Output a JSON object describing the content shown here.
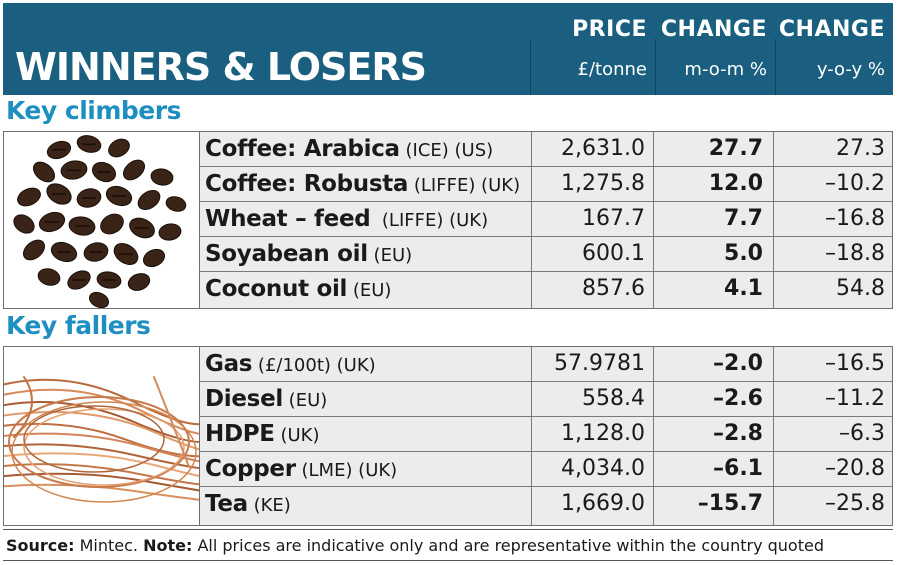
{
  "title": "WINNERS & LOSERS",
  "columns": [
    {
      "heading": "PRICE",
      "unit": "£/tonne"
    },
    {
      "heading": "CHANGE",
      "unit": "m-o-m %"
    },
    {
      "heading": "CHANGE",
      "unit": "y-o-y %"
    }
  ],
  "sections": [
    {
      "heading": "Key climbers",
      "rows": [
        {
          "name": "Coffee: Arabica",
          "qualifier": " (ICE) (US)",
          "price": "2,631.0",
          "mom": "27.7",
          "yoy": "27.3"
        },
        {
          "name": "Coffee: Robusta",
          "qualifier": " (LIFFE) (UK)",
          "price": "1,275.8",
          "mom": "12.0",
          "yoy": "–10.2"
        },
        {
          "name": "Wheat – feed",
          "qualifier": "  (LIFFE) (UK)",
          "price": "167.7",
          "mom": "7.7",
          "yoy": "–16.8"
        },
        {
          "name": "Soyabean oil",
          "qualifier": " (EU)",
          "price": "600.1",
          "mom": "5.0",
          "yoy": "–18.8"
        },
        {
          "name": "Coconut oil",
          "qualifier": " (EU)",
          "price": "857.6",
          "mom": "4.1",
          "yoy": "54.8"
        }
      ]
    },
    {
      "heading": "Key fallers",
      "rows": [
        {
          "name": "Gas",
          "qualifier": " (£/100t) (UK)",
          "price": "57.9781",
          "mom": "–2.0",
          "yoy": "–16.5"
        },
        {
          "name": "Diesel",
          "qualifier": " (EU)",
          "price": "558.4",
          "mom": "–2.6",
          "yoy": "–11.2"
        },
        {
          "name": "HDPE",
          "qualifier": " (UK)",
          "price": "1,128.0",
          "mom": "–2.8",
          "yoy": "–6.3"
        },
        {
          "name": "Copper",
          "qualifier": " (LME) (UK)",
          "price": "4,034.0",
          "mom": "–6.1",
          "yoy": "–20.8"
        },
        {
          "name": "Tea",
          "qualifier": " (KE)",
          "price": "1,669.0",
          "mom": "–15.7",
          "yoy": "–25.8"
        }
      ]
    }
  ],
  "footer": {
    "source_label": "Source:",
    "source_text": " Mintec. ",
    "note_label": "Note:",
    "note_text": " All prices are indicative only and are representative within the country quoted"
  }
}
